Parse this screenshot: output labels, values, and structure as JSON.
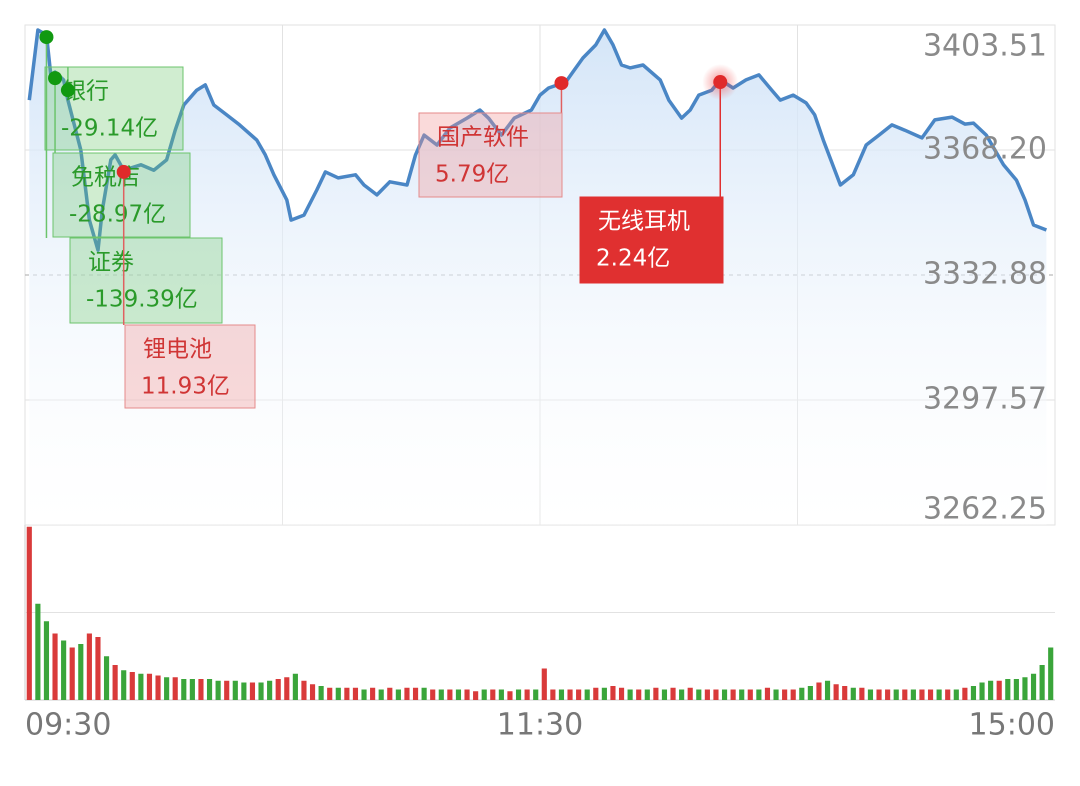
{
  "chart_data": {
    "type": "line",
    "x": [
      1,
      3,
      5,
      6,
      7,
      9,
      10,
      13,
      15,
      17,
      18,
      20,
      21,
      23,
      27,
      30,
      33,
      35,
      37,
      40,
      42,
      44,
      47,
      50,
      54,
      56,
      58,
      61,
      62,
      65,
      68,
      70,
      73,
      77,
      79,
      82,
      85,
      89,
      91,
      93,
      96,
      99,
      103,
      106,
      108,
      111,
      114,
      118,
      120,
      122,
      126,
      128,
      130,
      133,
      135,
      137,
      139,
      141,
      144,
      148,
      150,
      153,
      155,
      157,
      160,
      162,
      165,
      168,
      171,
      174,
      176,
      179,
      182,
      184,
      186,
      190,
      193,
      196,
      199,
      202,
      205,
      209,
      212,
      216,
      219,
      221,
      224,
      226,
      228,
      231,
      233,
      235,
      238
    ],
    "values": [
      3382.3,
      3402.1,
      3400.7,
      3389.4,
      3390.2,
      3388.0,
      3382.3,
      3368.2,
      3348.4,
      3339.9,
      3351.2,
      3365.4,
      3366.8,
      3362.5,
      3364.0,
      3362.5,
      3365.4,
      3373.8,
      3380.9,
      3385.1,
      3386.6,
      3380.9,
      3378.1,
      3375.3,
      3371.0,
      3366.8,
      3361.2,
      3354.1,
      3348.4,
      3349.8,
      3356.9,
      3362.0,
      3360.3,
      3361.2,
      3358.3,
      3355.5,
      3359.2,
      3358.3,
      3366.8,
      3372.4,
      3369.6,
      3374.4,
      3377.2,
      3379.5,
      3377.2,
      3372.4,
      3377.2,
      3379.5,
      3383.7,
      3385.7,
      3387.4,
      3390.8,
      3394.2,
      3397.9,
      3402.1,
      3397.9,
      3392.2,
      3391.4,
      3392.2,
      3388.0,
      3382.3,
      3377.2,
      3379.5,
      3383.7,
      3385.1,
      3388.0,
      3385.7,
      3388.0,
      3389.4,
      3385.1,
      3382.3,
      3383.7,
      3381.5,
      3378.1,
      3371.0,
      3358.3,
      3361.2,
      3369.6,
      3372.4,
      3375.3,
      3373.8,
      3371.6,
      3376.7,
      3377.5,
      3375.5,
      3375.8,
      3372.4,
      3368.2,
      3364.0,
      3359.7,
      3354.1,
      3347.0,
      3345.6
    ],
    "color": "#4a86c5",
    "xlim": [
      0,
      240
    ],
    "xticks": [
      {
        "value": 0,
        "label": "09:30"
      },
      {
        "value": 120,
        "label": "11:30"
      },
      {
        "value": 240,
        "label": "15:00"
      }
    ],
    "xgrid": [
      60,
      120,
      180
    ],
    "ylim": [
      3262.25,
      3403.51
    ],
    "yticks": [
      3403.51,
      {
        "value": 3368.2,
        "label": "3368.20"
      },
      3332.88,
      3297.57,
      3262.25
    ],
    "baseline": 3332.88,
    "grid": true,
    "annotations": [
      {
        "label": "银行",
        "amount": "-29.14亿",
        "x": 10,
        "y": 3385.1,
        "color": "green"
      },
      {
        "label": "免税店",
        "amount": "-28.97亿",
        "x": 7,
        "y": 3388.5,
        "color": "green"
      },
      {
        "label": "证券",
        "amount": "-139.39亿",
        "x": 5,
        "y": 3400.1,
        "color": "green"
      },
      {
        "label": "锂电池",
        "amount": "11.93亿",
        "x": 23,
        "y": 3362.0,
        "color": "red"
      },
      {
        "label": "国产软件",
        "amount": "5.79亿",
        "x": 125,
        "y": 3387.1,
        "color": "red"
      },
      {
        "label": "无线耳机",
        "amount": "2.24亿",
        "x": 162,
        "y": 3387.4,
        "color": "red",
        "highlight": true
      }
    ],
    "volume": {
      "ylim": [
        0,
        100
      ],
      "yticks": [
        0,
        50,
        100
      ],
      "up_color": "#d93a3a",
      "down_color": "#3aa53a",
      "values": [
        99,
        55,
        45,
        38,
        34,
        30,
        32,
        38,
        36,
        25,
        20,
        17,
        16,
        15,
        15,
        14,
        13,
        13,
        12,
        12,
        12,
        12,
        11,
        11,
        11,
        10,
        10,
        10,
        11,
        12,
        13,
        15,
        11,
        9,
        8,
        7,
        7,
        7,
        7,
        6,
        7,
        6,
        7,
        6,
        7,
        7,
        7,
        6,
        6,
        6,
        6,
        6,
        5,
        6,
        6,
        6,
        5,
        6,
        6,
        6,
        18,
        6,
        6,
        6,
        6,
        6,
        7,
        7,
        8,
        7,
        6,
        6,
        6,
        7,
        6,
        7,
        6,
        7,
        6,
        6,
        6,
        6,
        6,
        6,
        6,
        6,
        7,
        6,
        6,
        6,
        7,
        8,
        10,
        11,
        9,
        8,
        7,
        7,
        6,
        6,
        6,
        6,
        6,
        6,
        6,
        6,
        6,
        6,
        6,
        7,
        8,
        10,
        11,
        11,
        12,
        12,
        13,
        15,
        20,
        30
      ],
      "up": [
        true,
        false,
        false,
        true,
        false,
        true,
        false,
        true,
        true,
        false,
        true,
        false,
        true,
        false,
        true,
        true,
        false,
        true,
        false,
        false,
        true,
        false,
        false,
        true,
        false,
        false,
        true,
        false,
        false,
        true,
        true,
        false,
        true,
        true,
        false,
        true,
        false,
        true,
        true,
        false,
        true,
        false,
        true,
        false,
        true,
        true,
        false,
        true,
        false,
        true,
        false,
        true,
        true,
        false,
        true,
        false,
        true,
        false,
        true,
        false,
        true,
        true,
        false,
        true,
        true,
        false,
        true,
        false,
        true,
        true,
        false,
        true,
        false,
        true,
        false,
        true,
        false,
        true,
        false,
        true,
        true,
        false,
        true,
        false,
        true,
        false,
        true,
        false,
        true,
        true,
        false,
        false,
        true,
        false,
        true,
        true,
        false,
        true,
        false,
        true,
        true,
        false,
        true,
        false,
        true,
        true,
        false,
        true,
        false,
        true,
        false,
        false,
        false,
        true,
        false,
        false,
        false,
        false,
        false,
        false
      ]
    }
  }
}
